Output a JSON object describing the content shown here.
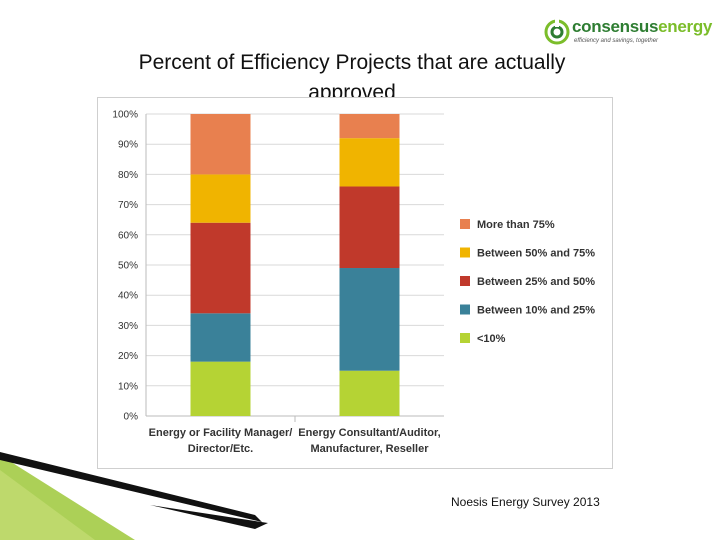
{
  "slide": {
    "title": "Percent of Efficiency Projects that are actually approved",
    "source": "Noesis Energy Survey 2013"
  },
  "logo": {
    "name_part1": "consensus",
    "name_part2": "energy",
    "tagline": "efficiency and savings, together"
  },
  "colors": {
    "more_than_75": "#E8804F",
    "between_50_75": "#F0B400",
    "between_25_50": "#C0392B",
    "between_10_25": "#3A8199",
    "less_than_10": "#B5D334",
    "deco_green": "#9DC83A",
    "deco_black": "#111111"
  },
  "chart_data": {
    "type": "bar",
    "stacked": true,
    "categories": [
      [
        "Energy or Facility Manager/",
        "Director/Etc."
      ],
      [
        "Energy Consultant/Auditor,",
        "Manufacturer, Reseller"
      ]
    ],
    "ylim": [
      0,
      100
    ],
    "yticks": [
      "0%",
      "10%",
      "20%",
      "30%",
      "40%",
      "50%",
      "60%",
      "70%",
      "80%",
      "90%",
      "100%"
    ],
    "grid": true,
    "legend_position": "right",
    "series": [
      {
        "name": "<10%",
        "values": [
          18,
          15
        ],
        "color": "#B5D334"
      },
      {
        "name": "Between 10% and 25%",
        "values": [
          16,
          34
        ],
        "color": "#3A8199"
      },
      {
        "name": "Between 25% and 50%",
        "values": [
          30,
          27
        ],
        "color": "#C0392B"
      },
      {
        "name": "Between 50% and 75%",
        "values": [
          16,
          16
        ],
        "color": "#F0B400"
      },
      {
        "name": "More than 75%",
        "values": [
          20,
          8
        ],
        "color": "#E8804F"
      }
    ]
  }
}
